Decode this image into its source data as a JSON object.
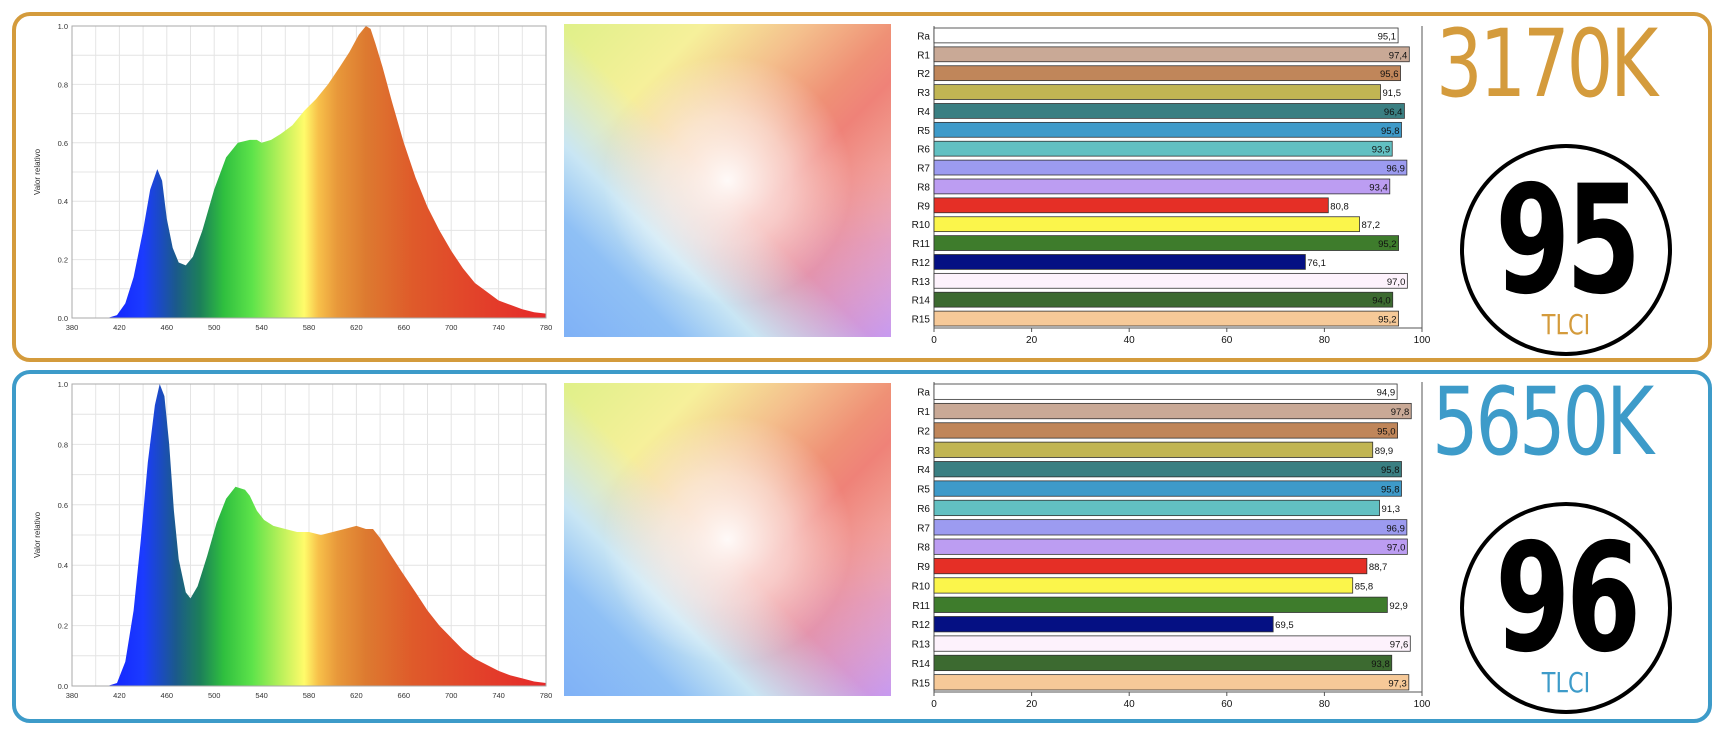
{
  "colors": {
    "warm": "#d49b3c",
    "cool": "#3d9bc9"
  },
  "panels": [
    {
      "cct": "3170K",
      "tlci_value": "95",
      "tlci_label": "TLCI",
      "spectrum": {
        "ylabel": "Valor relativo",
        "x_ticks": [
          "380",
          "420",
          "460",
          "500",
          "540",
          "580",
          "620",
          "660",
          "700",
          "740",
          "780"
        ],
        "y_ticks": [
          "0.0",
          "0.2",
          "0.4",
          "0.6",
          "0.8",
          "1.0"
        ],
        "x": [
          380,
          400,
          410,
          418,
          425,
          432,
          440,
          446,
          452,
          456,
          460,
          465,
          470,
          476,
          482,
          490,
          500,
          510,
          520,
          530,
          536,
          540,
          548,
          556,
          566,
          576,
          586,
          596,
          606,
          614,
          622,
          628,
          632,
          636,
          642,
          650,
          660,
          670,
          680,
          690,
          700,
          710,
          720,
          730,
          740,
          750,
          760,
          770,
          780
        ],
        "y": [
          0,
          0,
          0,
          0.01,
          0.05,
          0.14,
          0.3,
          0.44,
          0.51,
          0.47,
          0.34,
          0.24,
          0.19,
          0.18,
          0.21,
          0.3,
          0.44,
          0.55,
          0.6,
          0.61,
          0.61,
          0.6,
          0.61,
          0.63,
          0.66,
          0.71,
          0.75,
          0.8,
          0.86,
          0.91,
          0.97,
          1.0,
          0.99,
          0.94,
          0.86,
          0.74,
          0.6,
          0.48,
          0.38,
          0.3,
          0.23,
          0.17,
          0.12,
          0.09,
          0.06,
          0.045,
          0.03,
          0.02,
          0.015
        ]
      },
      "cri": {
        "labels": [
          "Ra",
          "R1",
          "R2",
          "R3",
          "R4",
          "R5",
          "R6",
          "R7",
          "R8",
          "R9",
          "R10",
          "R11",
          "R12",
          "R13",
          "R14",
          "R15"
        ],
        "values": [
          95.1,
          97.4,
          95.6,
          91.5,
          96.4,
          95.8,
          93.9,
          96.9,
          93.4,
          80.8,
          87.2,
          95.2,
          76.1,
          97.0,
          94.0,
          95.2
        ],
        "value_text": [
          "95,1",
          "97,4",
          "95,6",
          "91,5",
          "96,4",
          "95,8",
          "93,9",
          "96,9",
          "93,4",
          "80,8",
          "87,2",
          "95,2",
          "76,1",
          "97,0",
          "94,0",
          "95,2"
        ],
        "x_ticks": [
          "0",
          "20",
          "40",
          "60",
          "80",
          "100"
        ]
      }
    },
    {
      "cct": "5650K",
      "tlci_value": "96",
      "tlci_label": "TLCI",
      "spectrum": {
        "ylabel": "Valor relativo",
        "x_ticks": [
          "380",
          "420",
          "460",
          "500",
          "540",
          "580",
          "620",
          "660",
          "700",
          "740",
          "780"
        ],
        "y_ticks": [
          "0.0",
          "0.2",
          "0.4",
          "0.6",
          "0.8",
          "1.0"
        ],
        "x": [
          380,
          400,
          410,
          418,
          425,
          432,
          438,
          444,
          450,
          454,
          458,
          462,
          466,
          470,
          476,
          480,
          486,
          494,
          502,
          510,
          518,
          526,
          530,
          536,
          542,
          550,
          560,
          570,
          580,
          590,
          600,
          610,
          620,
          628,
          634,
          640,
          648,
          658,
          670,
          680,
          690,
          700,
          710,
          720,
          730,
          740,
          750,
          760,
          770,
          780
        ],
        "y": [
          0,
          0,
          0,
          0.01,
          0.08,
          0.25,
          0.48,
          0.74,
          0.93,
          1.0,
          0.96,
          0.8,
          0.58,
          0.42,
          0.31,
          0.29,
          0.33,
          0.43,
          0.54,
          0.62,
          0.66,
          0.65,
          0.63,
          0.58,
          0.55,
          0.53,
          0.52,
          0.51,
          0.51,
          0.5,
          0.51,
          0.52,
          0.53,
          0.52,
          0.52,
          0.49,
          0.44,
          0.38,
          0.31,
          0.25,
          0.2,
          0.16,
          0.12,
          0.09,
          0.07,
          0.05,
          0.035,
          0.025,
          0.015,
          0.01
        ]
      },
      "cri": {
        "labels": [
          "Ra",
          "R1",
          "R2",
          "R3",
          "R4",
          "R5",
          "R6",
          "R7",
          "R8",
          "R9",
          "R10",
          "R11",
          "R12",
          "R13",
          "R14",
          "R15"
        ],
        "values": [
          94.9,
          97.8,
          95.0,
          89.9,
          95.8,
          95.8,
          91.3,
          96.9,
          97.0,
          88.7,
          85.8,
          92.9,
          69.5,
          97.6,
          93.8,
          97.3
        ],
        "value_text": [
          "94,9",
          "97,8",
          "95,0",
          "89,9",
          "95,8",
          "95,8",
          "91,3",
          "96,9",
          "97,0",
          "88,7",
          "85,8",
          "92,9",
          "69,5",
          "97,6",
          "93,8",
          "97,3"
        ],
        "x_ticks": [
          "0",
          "20",
          "40",
          "60",
          "80",
          "100"
        ]
      }
    }
  ],
  "cri_colors": [
    "#ffffff",
    "#c9a996",
    "#c0865a",
    "#c1b553",
    "#3a7f82",
    "#3e9ac9",
    "#62c0c2",
    "#9c9bf0",
    "#bc9df2",
    "#e52f26",
    "#fbf54b",
    "#3e7c2c",
    "#051083",
    "#fdf2fc",
    "#3c6a30",
    "#f6c998"
  ],
  "chart_data": [
    {
      "type": "area",
      "title": "",
      "xlabel": "",
      "ylabel": "Valor relativo",
      "xlim": [
        380,
        780
      ],
      "ylim": [
        0,
        1
      ],
      "note": "3170K spectrum"
    },
    {
      "type": "bar",
      "title": "",
      "categories": [
        "Ra",
        "R1",
        "R2",
        "R3",
        "R4",
        "R5",
        "R6",
        "R7",
        "R8",
        "R9",
        "R10",
        "R11",
        "R12",
        "R13",
        "R14",
        "R15"
      ],
      "values": [
        95.1,
        97.4,
        95.6,
        91.5,
        96.4,
        95.8,
        93.9,
        96.9,
        93.4,
        80.8,
        87.2,
        95.2,
        76.1,
        97.0,
        94.0,
        95.2
      ],
      "xlim": [
        0,
        100
      ]
    },
    {
      "type": "area",
      "title": "",
      "xlabel": "",
      "ylabel": "Valor relativo",
      "xlim": [
        380,
        780
      ],
      "ylim": [
        0,
        1
      ],
      "note": "5650K spectrum"
    },
    {
      "type": "bar",
      "title": "",
      "categories": [
        "Ra",
        "R1",
        "R2",
        "R3",
        "R4",
        "R5",
        "R6",
        "R7",
        "R8",
        "R9",
        "R10",
        "R11",
        "R12",
        "R13",
        "R14",
        "R15"
      ],
      "values": [
        94.9,
        97.8,
        95.0,
        89.9,
        95.8,
        95.8,
        91.3,
        96.9,
        97.0,
        88.7,
        85.8,
        92.9,
        69.5,
        97.6,
        93.8,
        97.3
      ],
      "xlim": [
        0,
        100
      ]
    }
  ]
}
